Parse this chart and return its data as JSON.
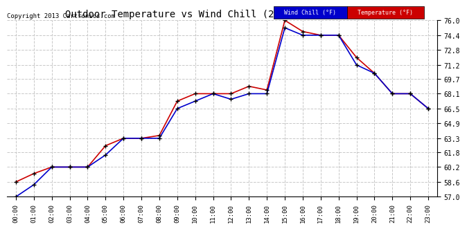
{
  "title": "Outdoor Temperature vs Wind Chill (24 Hours)  20131003",
  "copyright": "Copyright 2013 Cartronics.com",
  "background_color": "#ffffff",
  "plot_bg_color": "#ffffff",
  "grid_color": "#c8c8c8",
  "ylim": [
    57.0,
    76.0
  ],
  "yticks": [
    57.0,
    58.6,
    60.2,
    61.8,
    63.3,
    64.9,
    66.5,
    68.1,
    69.7,
    71.2,
    72.8,
    74.4,
    76.0
  ],
  "x_labels": [
    "00:00",
    "01:00",
    "02:00",
    "03:00",
    "04:00",
    "05:00",
    "06:00",
    "07:00",
    "08:00",
    "09:00",
    "10:00",
    "11:00",
    "12:00",
    "13:00",
    "14:00",
    "15:00",
    "16:00",
    "17:00",
    "18:00",
    "19:00",
    "20:00",
    "21:00",
    "22:00",
    "23:00"
  ],
  "legend_wind_label": "Wind Chill (°F)",
  "legend_temp_label": "Temperature (°F)",
  "wind_chill_color": "#0000cc",
  "temp_color": "#cc0000",
  "marker_color": "#000000",
  "wind_chill_values": [
    57.0,
    58.3,
    60.2,
    60.2,
    60.2,
    61.5,
    63.3,
    63.3,
    63.3,
    66.5,
    67.3,
    68.1,
    67.5,
    68.1,
    68.1,
    75.2,
    74.4,
    74.4,
    74.4,
    71.2,
    70.3,
    68.1,
    68.1,
    66.5
  ],
  "temperature_values": [
    58.6,
    59.5,
    60.2,
    60.2,
    60.2,
    62.5,
    63.3,
    63.3,
    63.6,
    67.3,
    68.1,
    68.1,
    68.1,
    68.9,
    68.5,
    76.0,
    74.8,
    74.4,
    74.4,
    72.0,
    70.3,
    68.1,
    68.1,
    66.5
  ]
}
